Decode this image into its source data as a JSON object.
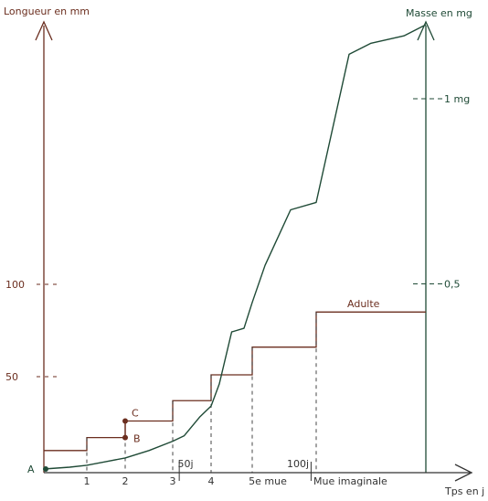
{
  "chart_data": {
    "type": "line",
    "left_axis_label": "Longueur en mm",
    "right_axis_label": "Masse en mg",
    "x_axis_label": "Tps en j",
    "left_ticks": [
      {
        "value": 100,
        "label": "100"
      },
      {
        "value": 50,
        "label": "50"
      }
    ],
    "right_ticks": [
      {
        "value": 1,
        "label": "1 mg"
      },
      {
        "value": 0.5,
        "label": "0,5"
      }
    ],
    "x_tick_labels": [
      {
        "stage": 1,
        "label": "1"
      },
      {
        "stage": 2,
        "label": "2"
      },
      {
        "stage": 3,
        "label": "3"
      },
      {
        "stage": 4,
        "label": "4"
      },
      {
        "stage": 5,
        "label": "5e mue"
      },
      {
        "stage": 6,
        "label": "Mue imaginale"
      }
    ],
    "time_marks": [
      "50j",
      "100j"
    ],
    "points": [
      {
        "name": "A",
        "label": "A"
      },
      {
        "name": "B",
        "label": "B"
      },
      {
        "name": "C",
        "label": "C"
      }
    ],
    "annotations": {
      "adult": "Adulte"
    },
    "series": [
      {
        "key": "length",
        "color": "#6b2e1f",
        "x": [
          0,
          1,
          2,
          3,
          4,
          5,
          6,
          7
        ],
        "values": [
          10,
          17,
          26,
          37,
          51,
          66,
          85,
          85
        ]
      },
      {
        "key": "mass",
        "color": "#1f4a36",
        "x": [
          0,
          0.6,
          1,
          1.5,
          2,
          2.5,
          3,
          3.3,
          3.7,
          4,
          4.2,
          4.5,
          4.8,
          5,
          5.2,
          5.6,
          6,
          6.3,
          6.5,
          6.8,
          7
        ],
        "values": [
          0,
          0.005,
          0.01,
          0.02,
          0.03,
          0.05,
          0.075,
          0.09,
          0.14,
          0.17,
          0.23,
          0.37,
          0.38,
          0.45,
          0.55,
          0.7,
          0.72,
          1.12,
          1.15,
          1.17,
          1.2
        ]
      }
    ],
    "colors": {
      "length": "#6b2e1f",
      "mass": "#1f4a36",
      "axis": "#333333"
    }
  }
}
